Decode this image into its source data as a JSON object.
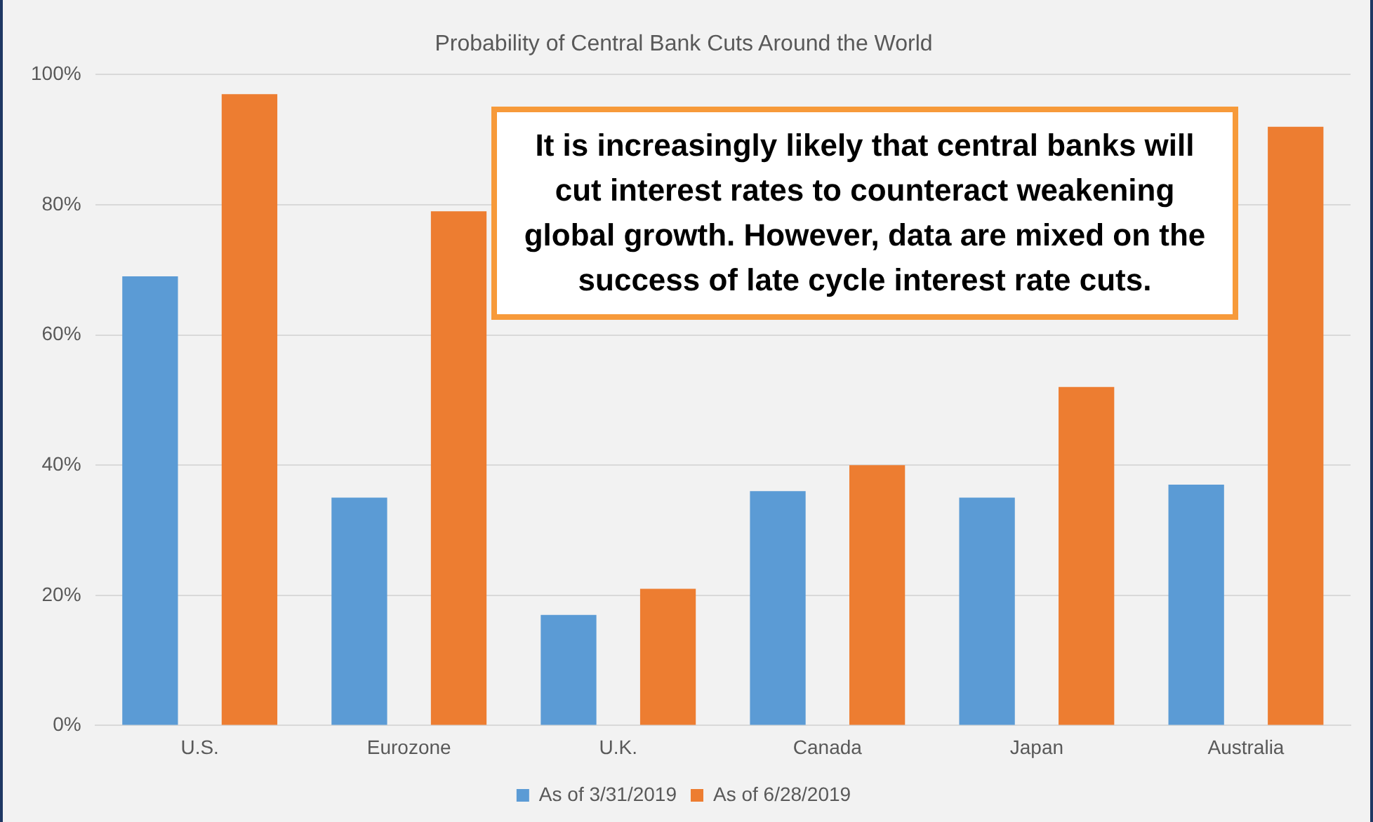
{
  "chart_data": {
    "type": "bar",
    "title": "Probability of Central Bank Cuts Around the World",
    "categories": [
      "U.S.",
      "Eurozone",
      "U.K.",
      "Canada",
      "Japan",
      "Australia"
    ],
    "series": [
      {
        "name": "As of 3/31/2019",
        "color": "#5b9bd5",
        "values": [
          69,
          35,
          17,
          36,
          35,
          37
        ]
      },
      {
        "name": "As of 6/28/2019",
        "color": "#ed7d31",
        "values": [
          97,
          79,
          21,
          40,
          52,
          92
        ]
      }
    ],
    "ylim": [
      0,
      100
    ],
    "yticks": [
      {
        "value": 0,
        "label": "0%"
      },
      {
        "value": 20,
        "label": "20%"
      },
      {
        "value": 40,
        "label": "40%"
      },
      {
        "value": 60,
        "label": "60%"
      },
      {
        "value": 80,
        "label": "80%"
      },
      {
        "value": 100,
        "label": "100%"
      }
    ],
    "grid": "y",
    "legend": "bottom",
    "annotations": [
      "It is increasingly likely that central banks will cut interest rates to counteract weakening global growth. However, data are mixed on the success of late cycle interest rate cuts."
    ]
  }
}
